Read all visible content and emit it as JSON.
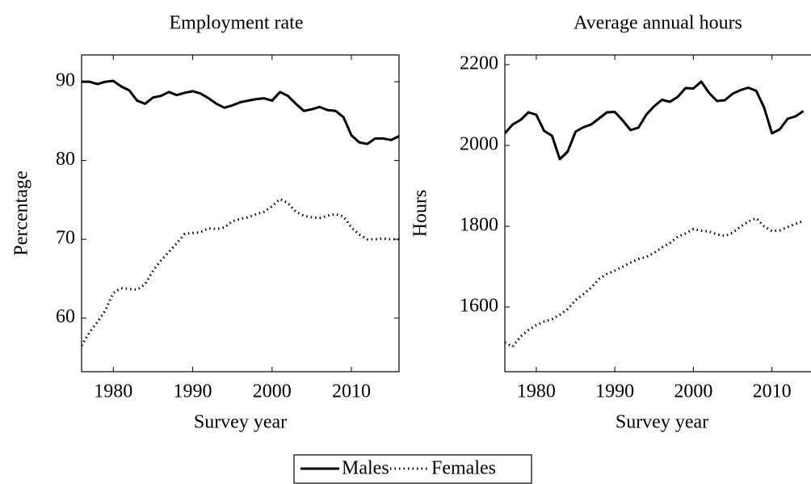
{
  "chart_data": [
    {
      "type": "line",
      "title": "Employment rate",
      "x_label": "Survey year",
      "y_label": "Percentage",
      "x": [
        1976,
        1977,
        1978,
        1979,
        1980,
        1981,
        1982,
        1983,
        1984,
        1985,
        1986,
        1987,
        1988,
        1989,
        1990,
        1991,
        1992,
        1993,
        1994,
        1995,
        1996,
        1997,
        1998,
        1999,
        2000,
        2001,
        2002,
        2003,
        2004,
        2005,
        2006,
        2007,
        2008,
        2009,
        2010,
        2011,
        2012,
        2013,
        2014,
        2015,
        2016
      ],
      "series": [
        {
          "name": "Males",
          "color": "#000000",
          "dash": "solid",
          "values": [
            90.0,
            90.0,
            89.7,
            90.0,
            90.1,
            89.4,
            88.9,
            87.6,
            87.2,
            88.0,
            88.2,
            88.7,
            88.3,
            88.6,
            88.8,
            88.5,
            87.9,
            87.2,
            86.7,
            87.0,
            87.4,
            87.6,
            87.8,
            87.9,
            87.6,
            88.7,
            88.2,
            87.2,
            86.3,
            86.5,
            86.8,
            86.4,
            86.3,
            85.5,
            83.2,
            82.3,
            82.1,
            82.8,
            82.8,
            82.6,
            83.1
          ]
        },
        {
          "name": "Females",
          "color": "#000000",
          "dash": "dotted",
          "values": [
            56.5,
            58.2,
            59.5,
            61.0,
            63.2,
            63.8,
            63.7,
            63.6,
            64.3,
            66.0,
            67.3,
            68.4,
            69.5,
            70.7,
            70.8,
            70.9,
            71.4,
            71.3,
            71.5,
            72.3,
            72.6,
            72.8,
            73.2,
            73.5,
            74.2,
            75.1,
            74.6,
            73.5,
            73.0,
            72.8,
            72.7,
            73.0,
            73.2,
            72.9,
            71.5,
            70.6,
            70.0,
            70.0,
            70.1,
            70.0,
            70.0
          ]
        }
      ],
      "xlim": [
        1976,
        2016
      ],
      "ylim": [
        53.2,
        93.4
      ],
      "xticks": [
        1980,
        1990,
        2000,
        2010
      ],
      "yticks": [
        60,
        70,
        80,
        90
      ]
    },
    {
      "type": "line",
      "title": "Average annual hours",
      "x_label": "Survey year",
      "y_label": "Hours",
      "x": [
        1976,
        1977,
        1978,
        1979,
        1980,
        1981,
        1982,
        1983,
        1984,
        1985,
        1986,
        1987,
        1988,
        1989,
        1990,
        1991,
        1992,
        1993,
        1994,
        1995,
        1996,
        1997,
        1998,
        1999,
        2000,
        2001,
        2002,
        2003,
        2004,
        2005,
        2006,
        2007,
        2008,
        2009,
        2010,
        2011,
        2012,
        2013,
        2014
      ],
      "series": [
        {
          "name": "Males",
          "color": "#000000",
          "dash": "solid",
          "values": [
            2030,
            2052,
            2063,
            2082,
            2076,
            2036,
            2024,
            1966,
            1985,
            2034,
            2045,
            2052,
            2067,
            2082,
            2083,
            2062,
            2038,
            2044,
            2076,
            2097,
            2113,
            2108,
            2120,
            2142,
            2141,
            2158,
            2130,
            2110,
            2112,
            2128,
            2137,
            2143,
            2135,
            2094,
            2030,
            2040,
            2066,
            2072,
            2085
          ]
        },
        {
          "name": "Females",
          "color": "#000000",
          "dash": "dotted",
          "values": [
            1512,
            1502,
            1527,
            1543,
            1555,
            1564,
            1570,
            1581,
            1595,
            1617,
            1632,
            1648,
            1670,
            1682,
            1690,
            1700,
            1710,
            1719,
            1724,
            1734,
            1748,
            1758,
            1774,
            1782,
            1793,
            1789,
            1787,
            1780,
            1776,
            1784,
            1799,
            1812,
            1820,
            1800,
            1788,
            1790,
            1798,
            1806,
            1813
          ]
        }
      ],
      "xlim": [
        1976,
        2016
      ],
      "ylim": [
        1440,
        2224
      ],
      "xticks": [
        1980,
        1990,
        2000,
        2010
      ],
      "yticks": [
        1600,
        1800,
        2000,
        2200
      ]
    }
  ]
}
